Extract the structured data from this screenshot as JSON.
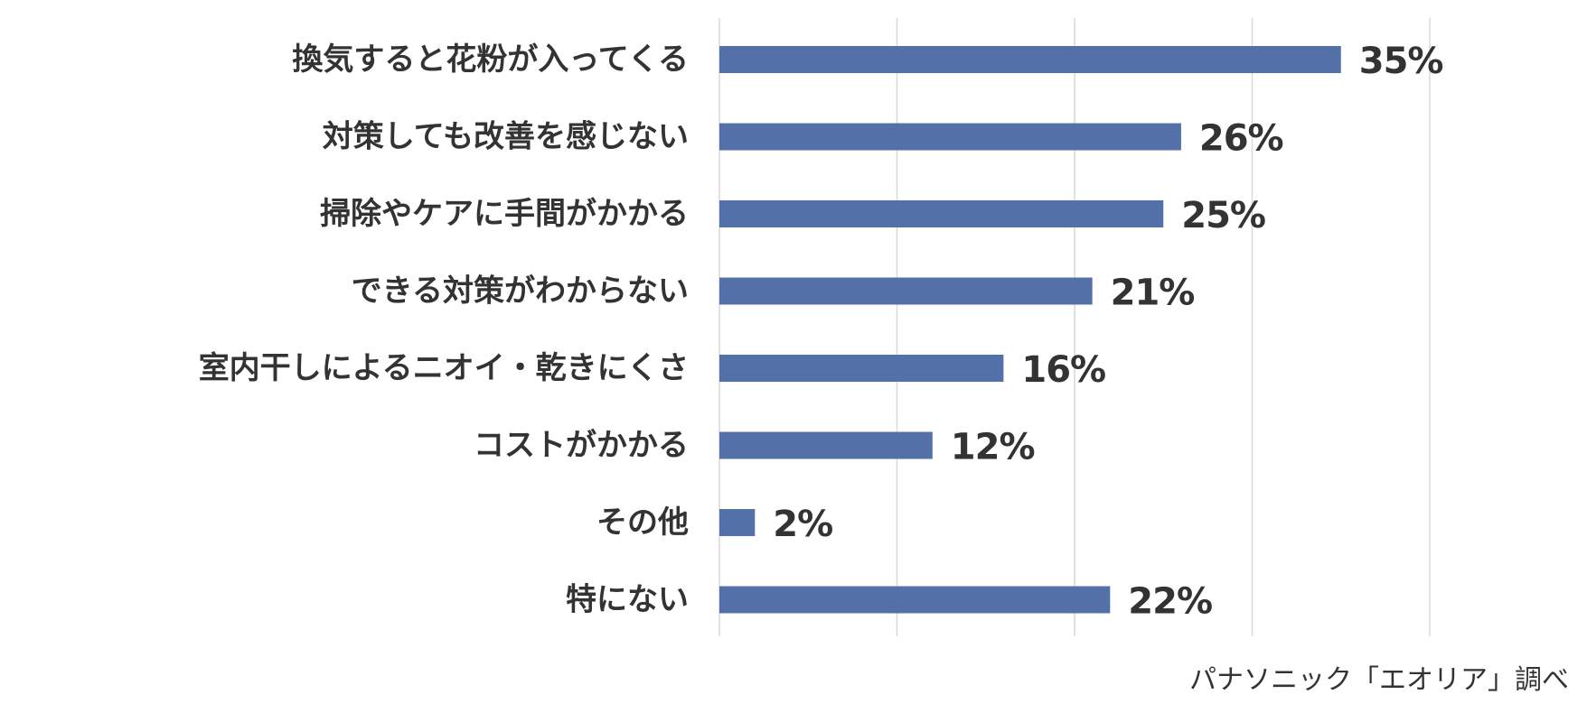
{
  "chart_data": {
    "type": "bar",
    "orientation": "horizontal",
    "categories": [
      "換気すると花粉が入ってくる",
      "対策しても改善を感じない",
      "掃除やケアに手間がかかる",
      "できる対策がわからない",
      "室内干しによるニオイ・乾きにくさ",
      "コストがかかる",
      "その他",
      "特にない"
    ],
    "values": [
      35,
      26,
      25,
      21,
      16,
      12,
      2,
      22
    ],
    "value_labels": [
      "35%",
      "26%",
      "25%",
      "21%",
      "16%",
      "12%",
      "2%",
      "22%"
    ],
    "unit": "%",
    "xlim": [
      0,
      40
    ],
    "grid": true,
    "bar_color": "#5470a9",
    "grid_color": "#d9d9d9"
  },
  "source_note": "パナソニック「エオリア」調べ"
}
